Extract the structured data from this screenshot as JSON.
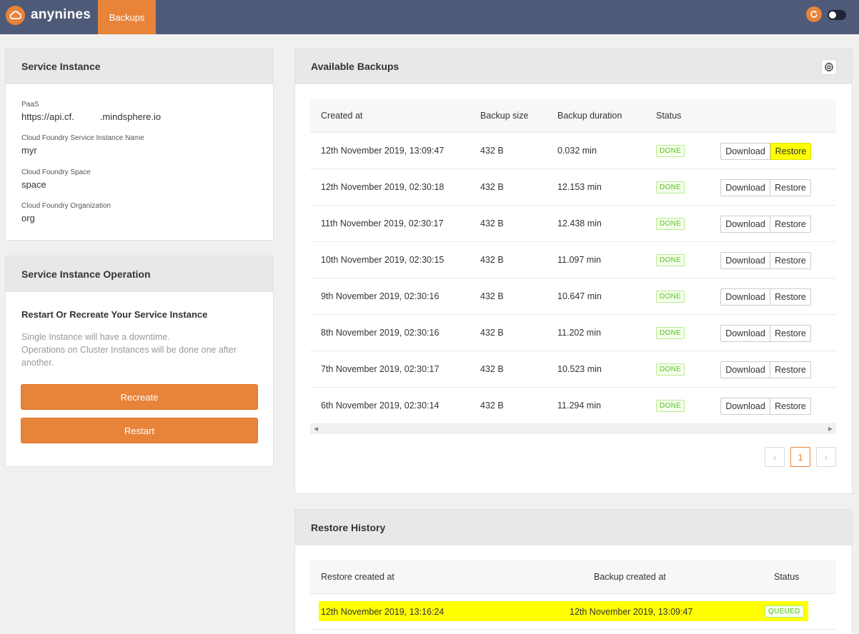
{
  "topbar": {
    "brand": "anynines",
    "tab_backups": "Backups"
  },
  "service_instance": {
    "title": "Service Instance",
    "fields": [
      {
        "label": "PaaS",
        "value": "https://api.cf.          .mindsphere.io"
      },
      {
        "label": "Cloud Foundry Service Instance Name",
        "value": "myr"
      },
      {
        "label": "Cloud Foundry Space",
        "value": "space"
      },
      {
        "label": "Cloud Foundry Organization",
        "value": "org"
      }
    ]
  },
  "operation": {
    "title": "Service Instance Operation",
    "subtitle": "Restart Or Recreate Your Service Instance",
    "desc_line1": "Single Instance will have a downtime.",
    "desc_line2": "Operations on Cluster Instances will be done one after another.",
    "recreate_label": "Recreate",
    "restart_label": "Restart"
  },
  "backups": {
    "title": "Available Backups",
    "columns": {
      "created": "Created at",
      "size": "Backup size",
      "duration": "Backup duration",
      "status": "Status"
    },
    "download_label": "Download",
    "restore_label": "Restore",
    "rows": [
      {
        "created": "12th November 2019, 13:09:47",
        "size": "432 B",
        "duration": "0.032 min",
        "status": "DONE"
      },
      {
        "created": "12th November 2019, 02:30:18",
        "size": "432 B",
        "duration": "12.153 min",
        "status": "DONE"
      },
      {
        "created": "11th November 2019, 02:30:17",
        "size": "432 B",
        "duration": "12.438 min",
        "status": "DONE"
      },
      {
        "created": "10th November 2019, 02:30:15",
        "size": "432 B",
        "duration": "11.097 min",
        "status": "DONE"
      },
      {
        "created": "9th November 2019, 02:30:16",
        "size": "432 B",
        "duration": "10.647 min",
        "status": "DONE"
      },
      {
        "created": "8th November 2019, 02:30:16",
        "size": "432 B",
        "duration": "11.202 min",
        "status": "DONE"
      },
      {
        "created": "7th November 2019, 02:30:17",
        "size": "432 B",
        "duration": "10.523 min",
        "status": "DONE"
      },
      {
        "created": "6th November 2019, 02:30:14",
        "size": "432 B",
        "duration": "11.294 min",
        "status": "DONE"
      }
    ],
    "pagination": {
      "prev": "‹",
      "current": "1",
      "next": "›"
    }
  },
  "restore_history": {
    "title": "Restore History",
    "columns": {
      "restore_created": "Restore created at",
      "backup_created": "Backup created at",
      "status": "Status"
    },
    "rows": [
      {
        "restore_created": "12th November 2019, 13:16:24",
        "backup_created": "12th November 2019, 13:09:47",
        "status": "QUEUED"
      }
    ]
  },
  "colors": {
    "accent": "#e8833a",
    "topbar": "#4e5a78",
    "highlight": "#ffff00",
    "status_green": "#52c41a"
  },
  "icons": [
    "cloud-logo-icon",
    "refresh-icon",
    "toggle-switch",
    "gear-icon",
    "chevron-left-icon",
    "chevron-right-icon"
  ]
}
